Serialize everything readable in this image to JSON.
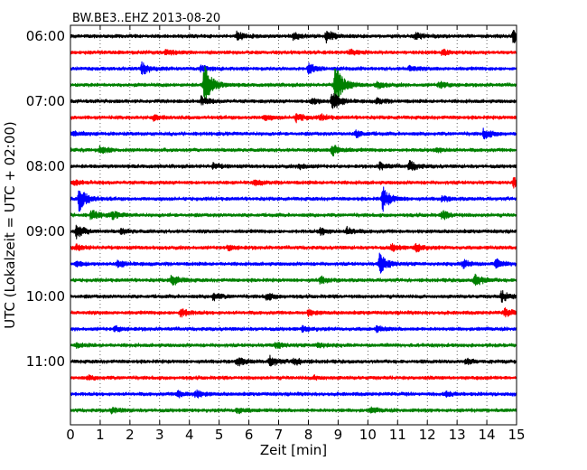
{
  "chart_data": {
    "type": "line",
    "title": "BW.BE3..EHZ 2013-08-20",
    "xlabel": "Zeit  [min]",
    "ylabel": "UTC (Lokalzeit = UTC + 02:00)",
    "xlim": [
      0,
      15
    ],
    "x_ticks": [
      "0",
      "1",
      "2",
      "3",
      "4",
      "5",
      "6",
      "7",
      "8",
      "9",
      "10",
      "11",
      "12",
      "13",
      "14",
      "15"
    ],
    "y_ticks": [
      "06:00",
      "07:00",
      "08:00",
      "09:00",
      "10:00",
      "11:00"
    ],
    "grid": "vertical dotted",
    "trace_interval_min": 15,
    "colors": [
      "#000000",
      "#ff0000",
      "#0000ff",
      "#008000"
    ],
    "series": [
      {
        "start": "06:00",
        "events": [
          {
            "t": 5.6,
            "a": 0.5
          },
          {
            "t": 7.5,
            "a": 0.4
          },
          {
            "t": 8.6,
            "a": 0.7
          },
          {
            "t": 11.6,
            "a": 0.4
          },
          {
            "t": 14.9,
            "a": 0.8
          }
        ]
      },
      {
        "start": "06:15",
        "events": [
          {
            "t": 3.2,
            "a": 0.3
          },
          {
            "t": 9.4,
            "a": 0.3
          },
          {
            "t": 12.5,
            "a": 0.3
          }
        ]
      },
      {
        "start": "06:30",
        "events": [
          {
            "t": 2.4,
            "a": 0.7
          },
          {
            "t": 4.4,
            "a": 0.4
          },
          {
            "t": 8.0,
            "a": 0.6
          },
          {
            "t": 11.4,
            "a": 0.3
          }
        ]
      },
      {
        "start": "06:45",
        "events": [
          {
            "t": 4.5,
            "a": 2.6
          },
          {
            "t": 8.9,
            "a": 2.6
          },
          {
            "t": 10.3,
            "a": 0.4
          },
          {
            "t": 12.4,
            "a": 0.4
          }
        ]
      },
      {
        "start": "07:00",
        "events": [
          {
            "t": 4.4,
            "a": 0.5
          },
          {
            "t": 8.1,
            "a": 0.4
          },
          {
            "t": 8.8,
            "a": 1.2
          },
          {
            "t": 10.3,
            "a": 0.3
          }
        ]
      },
      {
        "start": "07:15",
        "events": [
          {
            "t": 2.8,
            "a": 0.3
          },
          {
            "t": 6.5,
            "a": 0.3
          },
          {
            "t": 7.6,
            "a": 0.5
          },
          {
            "t": 8.4,
            "a": 0.3
          }
        ]
      },
      {
        "start": "07:30",
        "events": [
          {
            "t": 0.1,
            "a": 0.3
          },
          {
            "t": 9.6,
            "a": 0.4
          },
          {
            "t": 13.9,
            "a": 0.6
          }
        ]
      },
      {
        "start": "07:45",
        "events": [
          {
            "t": 1.0,
            "a": 0.4
          },
          {
            "t": 8.8,
            "a": 0.7
          },
          {
            "t": 12.3,
            "a": 0.3
          }
        ]
      },
      {
        "start": "08:00",
        "events": [
          {
            "t": 4.8,
            "a": 0.3
          },
          {
            "t": 7.7,
            "a": 0.3
          },
          {
            "t": 10.4,
            "a": 0.4
          },
          {
            "t": 11.4,
            "a": 0.6
          }
        ]
      },
      {
        "start": "08:15",
        "events": [
          {
            "t": 0.1,
            "a": 0.3
          },
          {
            "t": 6.2,
            "a": 0.3
          },
          {
            "t": 14.9,
            "a": 0.6
          }
        ]
      },
      {
        "start": "08:30",
        "events": [
          {
            "t": 0.3,
            "a": 1.5
          },
          {
            "t": 10.5,
            "a": 1.4
          },
          {
            "t": 12.5,
            "a": 0.3
          }
        ]
      },
      {
        "start": "08:45",
        "events": [
          {
            "t": 0.7,
            "a": 0.6
          },
          {
            "t": 1.4,
            "a": 0.4
          },
          {
            "t": 12.5,
            "a": 0.5
          }
        ]
      },
      {
        "start": "09:00",
        "events": [
          {
            "t": 0.2,
            "a": 0.9
          },
          {
            "t": 1.7,
            "a": 0.3
          },
          {
            "t": 8.4,
            "a": 0.4
          },
          {
            "t": 9.3,
            "a": 0.4
          }
        ]
      },
      {
        "start": "09:15",
        "events": [
          {
            "t": 0.2,
            "a": 0.3
          },
          {
            "t": 5.3,
            "a": 0.3
          },
          {
            "t": 10.8,
            "a": 0.4
          },
          {
            "t": 11.6,
            "a": 0.5
          }
        ]
      },
      {
        "start": "09:30",
        "events": [
          {
            "t": 0.2,
            "a": 0.3
          },
          {
            "t": 1.6,
            "a": 0.4
          },
          {
            "t": 10.4,
            "a": 1.3
          },
          {
            "t": 13.2,
            "a": 0.5
          },
          {
            "t": 14.3,
            "a": 0.5
          }
        ]
      },
      {
        "start": "09:45",
        "events": [
          {
            "t": 3.4,
            "a": 0.7
          },
          {
            "t": 8.4,
            "a": 0.4
          },
          {
            "t": 13.6,
            "a": 0.8
          }
        ]
      },
      {
        "start": "10:00",
        "events": [
          {
            "t": 4.8,
            "a": 0.4
          },
          {
            "t": 6.6,
            "a": 0.4
          },
          {
            "t": 14.5,
            "a": 0.6
          }
        ]
      },
      {
        "start": "10:15",
        "events": [
          {
            "t": 3.7,
            "a": 0.5
          },
          {
            "t": 8.0,
            "a": 0.3
          },
          {
            "t": 14.6,
            "a": 0.5
          }
        ]
      },
      {
        "start": "10:30",
        "events": [
          {
            "t": 1.5,
            "a": 0.3
          },
          {
            "t": 7.8,
            "a": 0.3
          },
          {
            "t": 10.3,
            "a": 0.3
          }
        ]
      },
      {
        "start": "10:45",
        "events": [
          {
            "t": 0.2,
            "a": 0.2
          },
          {
            "t": 6.9,
            "a": 0.4
          },
          {
            "t": 8.3,
            "a": 0.3
          }
        ]
      },
      {
        "start": "11:00",
        "events": [
          {
            "t": 5.6,
            "a": 0.5
          },
          {
            "t": 6.7,
            "a": 0.6
          },
          {
            "t": 7.5,
            "a": 0.4
          },
          {
            "t": 13.3,
            "a": 0.3
          }
        ]
      },
      {
        "start": "11:15",
        "events": [
          {
            "t": 0.6,
            "a": 0.2
          },
          {
            "t": 8.2,
            "a": 0.2
          }
        ]
      },
      {
        "start": "11:30",
        "events": [
          {
            "t": 3.6,
            "a": 0.4
          },
          {
            "t": 4.2,
            "a": 0.4
          },
          {
            "t": 12.6,
            "a": 0.3
          }
        ]
      },
      {
        "start": "11:45",
        "events": [
          {
            "t": 1.4,
            "a": 0.3
          },
          {
            "t": 5.6,
            "a": 0.3
          },
          {
            "t": 10.1,
            "a": 0.3
          }
        ]
      }
    ]
  }
}
